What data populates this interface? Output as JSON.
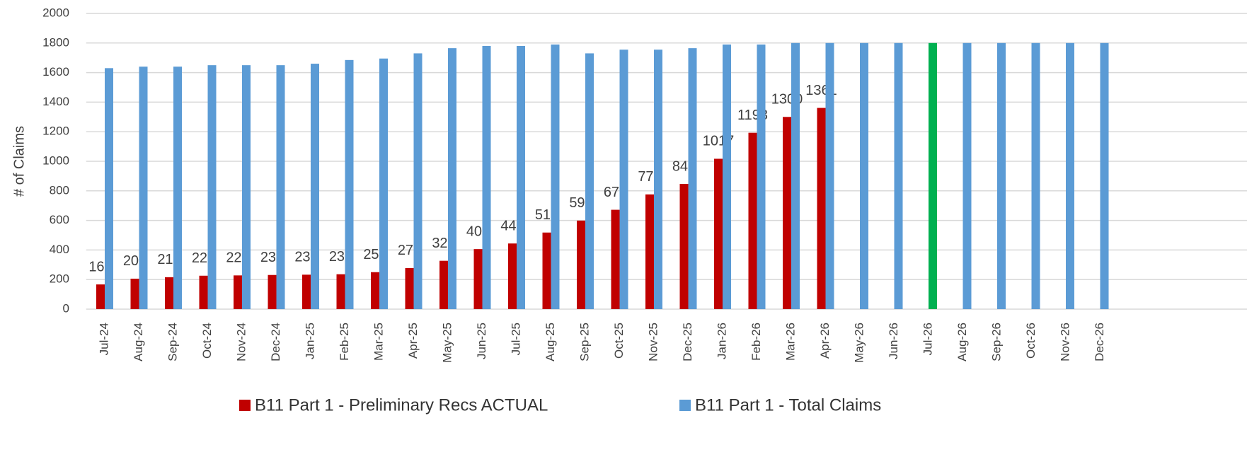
{
  "chart_data": {
    "type": "bar",
    "y_label": "# of Claims",
    "categories": [
      "Jul-24",
      "Aug-24",
      "Sep-24",
      "Oct-24",
      "Nov-24",
      "Dec-24",
      "Jan-25",
      "Feb-25",
      "Mar-25",
      "Apr-25",
      "May-25",
      "Jun-25",
      "Jul-25",
      "Aug-25",
      "Sep-25",
      "Oct-25",
      "Nov-25",
      "Dec-25",
      "Jan-26",
      "Feb-26",
      "Mar-26",
      "Apr-26",
      "May-26",
      "Jun-26",
      "Jul-26",
      "Aug-26",
      "Sep-26",
      "Oct-26",
      "Nov-26",
      "Dec-26"
    ],
    "series": [
      {
        "name": "B11 Part 1 - Preliminary Recs ACTUAL",
        "color": "#c00000",
        "data_labels": true,
        "values": [
          167,
          206,
          216,
          226,
          228,
          231,
          233,
          236,
          250,
          278,
          327,
          406,
          444,
          518,
          599,
          672,
          776,
          847,
          1017,
          1193,
          1300,
          1361,
          null,
          null,
          null,
          null,
          null,
          null,
          null,
          null
        ]
      },
      {
        "name": "B11 Part 1 - Total Claims",
        "color": "#5b9bd5",
        "values": [
          1630,
          1640,
          1640,
          1650,
          1650,
          1650,
          1660,
          1685,
          1695,
          1730,
          1765,
          1780,
          1780,
          1790,
          1730,
          1755,
          1755,
          1765,
          1790,
          1790,
          1800,
          1800,
          1800,
          1800,
          1800,
          1800,
          1800,
          1800,
          1800,
          1800
        ],
        "colors": [
          "#5b9bd5",
          "#5b9bd5",
          "#5b9bd5",
          "#5b9bd5",
          "#5b9bd5",
          "#5b9bd5",
          "#5b9bd5",
          "#5b9bd5",
          "#5b9bd5",
          "#5b9bd5",
          "#5b9bd5",
          "#5b9bd5",
          "#5b9bd5",
          "#5b9bd5",
          "#5b9bd5",
          "#5b9bd5",
          "#5b9bd5",
          "#5b9bd5",
          "#5b9bd5",
          "#5b9bd5",
          "#5b9bd5",
          "#5b9bd5",
          "#5b9bd5",
          "#5b9bd5",
          "#00b050",
          "#5b9bd5",
          "#5b9bd5",
          "#5b9bd5",
          "#5b9bd5",
          "#5b9bd5"
        ]
      }
    ],
    "ylim": [
      0,
      2000
    ],
    "yticks": [
      0,
      200,
      400,
      600,
      800,
      1000,
      1200,
      1400,
      1600,
      1800,
      2000
    ],
    "grid": true,
    "legend": "bottom"
  }
}
